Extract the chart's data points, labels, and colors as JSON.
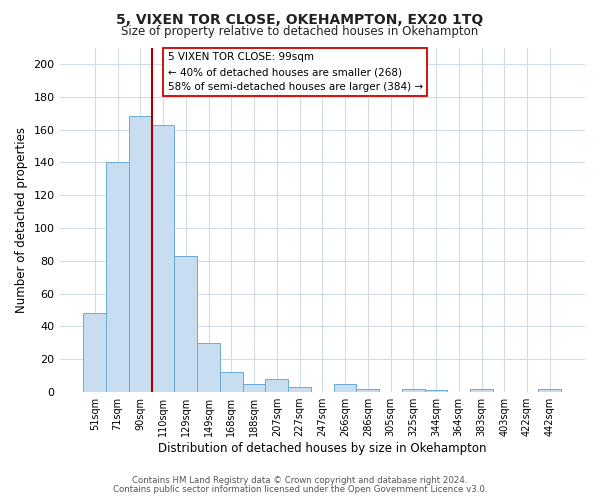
{
  "title": "5, VIXEN TOR CLOSE, OKEHAMPTON, EX20 1TQ",
  "subtitle": "Size of property relative to detached houses in Okehampton",
  "xlabel": "Distribution of detached houses by size in Okehampton",
  "ylabel": "Number of detached properties",
  "bar_labels": [
    "51sqm",
    "71sqm",
    "90sqm",
    "110sqm",
    "129sqm",
    "149sqm",
    "168sqm",
    "188sqm",
    "207sqm",
    "227sqm",
    "247sqm",
    "266sqm",
    "286sqm",
    "305sqm",
    "325sqm",
    "344sqm",
    "364sqm",
    "383sqm",
    "403sqm",
    "422sqm",
    "442sqm"
  ],
  "bar_values": [
    48,
    140,
    168,
    163,
    83,
    30,
    12,
    5,
    8,
    3,
    0,
    5,
    2,
    0,
    2,
    1,
    0,
    2,
    0,
    0,
    2
  ],
  "bar_color": "#c9ddf0",
  "bar_edge_color": "#6aaad4",
  "vline_position": 3,
  "vline_color": "#aa0000",
  "ylim": [
    0,
    210
  ],
  "yticks": [
    0,
    20,
    40,
    60,
    80,
    100,
    120,
    140,
    160,
    180,
    200
  ],
  "annotation_title": "5 VIXEN TOR CLOSE: 99sqm",
  "annotation_line1": "← 40% of detached houses are smaller (268)",
  "annotation_line2": "58% of semi-detached houses are larger (384) →",
  "annotation_box_facecolor": "#ffffff",
  "annotation_box_edgecolor": "#cc0000",
  "footer1": "Contains HM Land Registry data © Crown copyright and database right 2024.",
  "footer2": "Contains public sector information licensed under the Open Government Licence v3.0.",
  "plot_bg_color": "#ffffff",
  "fig_bg_color": "#ffffff",
  "grid_color": "#d0dce8"
}
